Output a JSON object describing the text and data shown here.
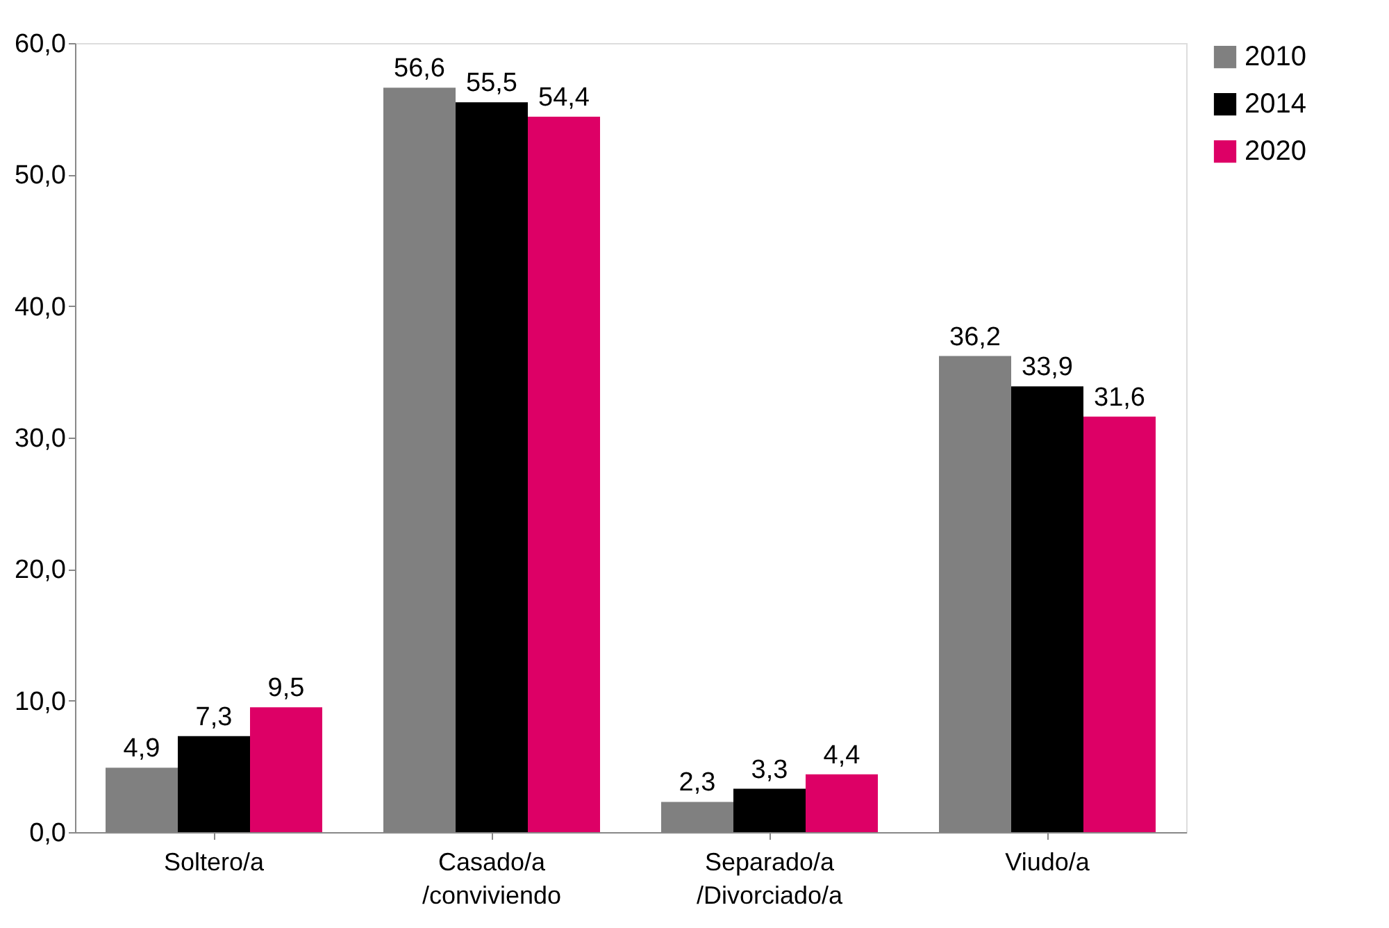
{
  "chart_data": {
    "type": "bar",
    "categories": [
      "Soltero/a",
      "Casado/a\n/conviviendo",
      "Separado/a\n/Divorciado/a",
      "Viudo/a"
    ],
    "series": [
      {
        "name": "2010",
        "color": "#808080",
        "values": [
          4.9,
          56.6,
          2.3,
          36.2
        ],
        "value_labels": [
          "4,9",
          "56,6",
          "2,3",
          "36,2"
        ]
      },
      {
        "name": "2014",
        "color": "#000000",
        "values": [
          7.3,
          55.5,
          3.3,
          33.9
        ],
        "value_labels": [
          "7,3",
          "55,5",
          "3,3",
          "33,9"
        ]
      },
      {
        "name": "2020",
        "color": "#dd0066",
        "values": [
          9.5,
          54.4,
          4.4,
          31.6
        ],
        "value_labels": [
          "9,5",
          "54,4",
          "4,4",
          "31,6"
        ]
      }
    ],
    "ylim": [
      0,
      60
    ],
    "yticks": [
      {
        "value": 0,
        "label": "0,0"
      },
      {
        "value": 10,
        "label": "10,0"
      },
      {
        "value": 20,
        "label": "20,0"
      },
      {
        "value": 30,
        "label": "30,0"
      },
      {
        "value": 40,
        "label": "40,0"
      },
      {
        "value": 50,
        "label": "50,0"
      },
      {
        "value": 60,
        "label": "60,0"
      }
    ],
    "grid": false,
    "legend": "right"
  }
}
